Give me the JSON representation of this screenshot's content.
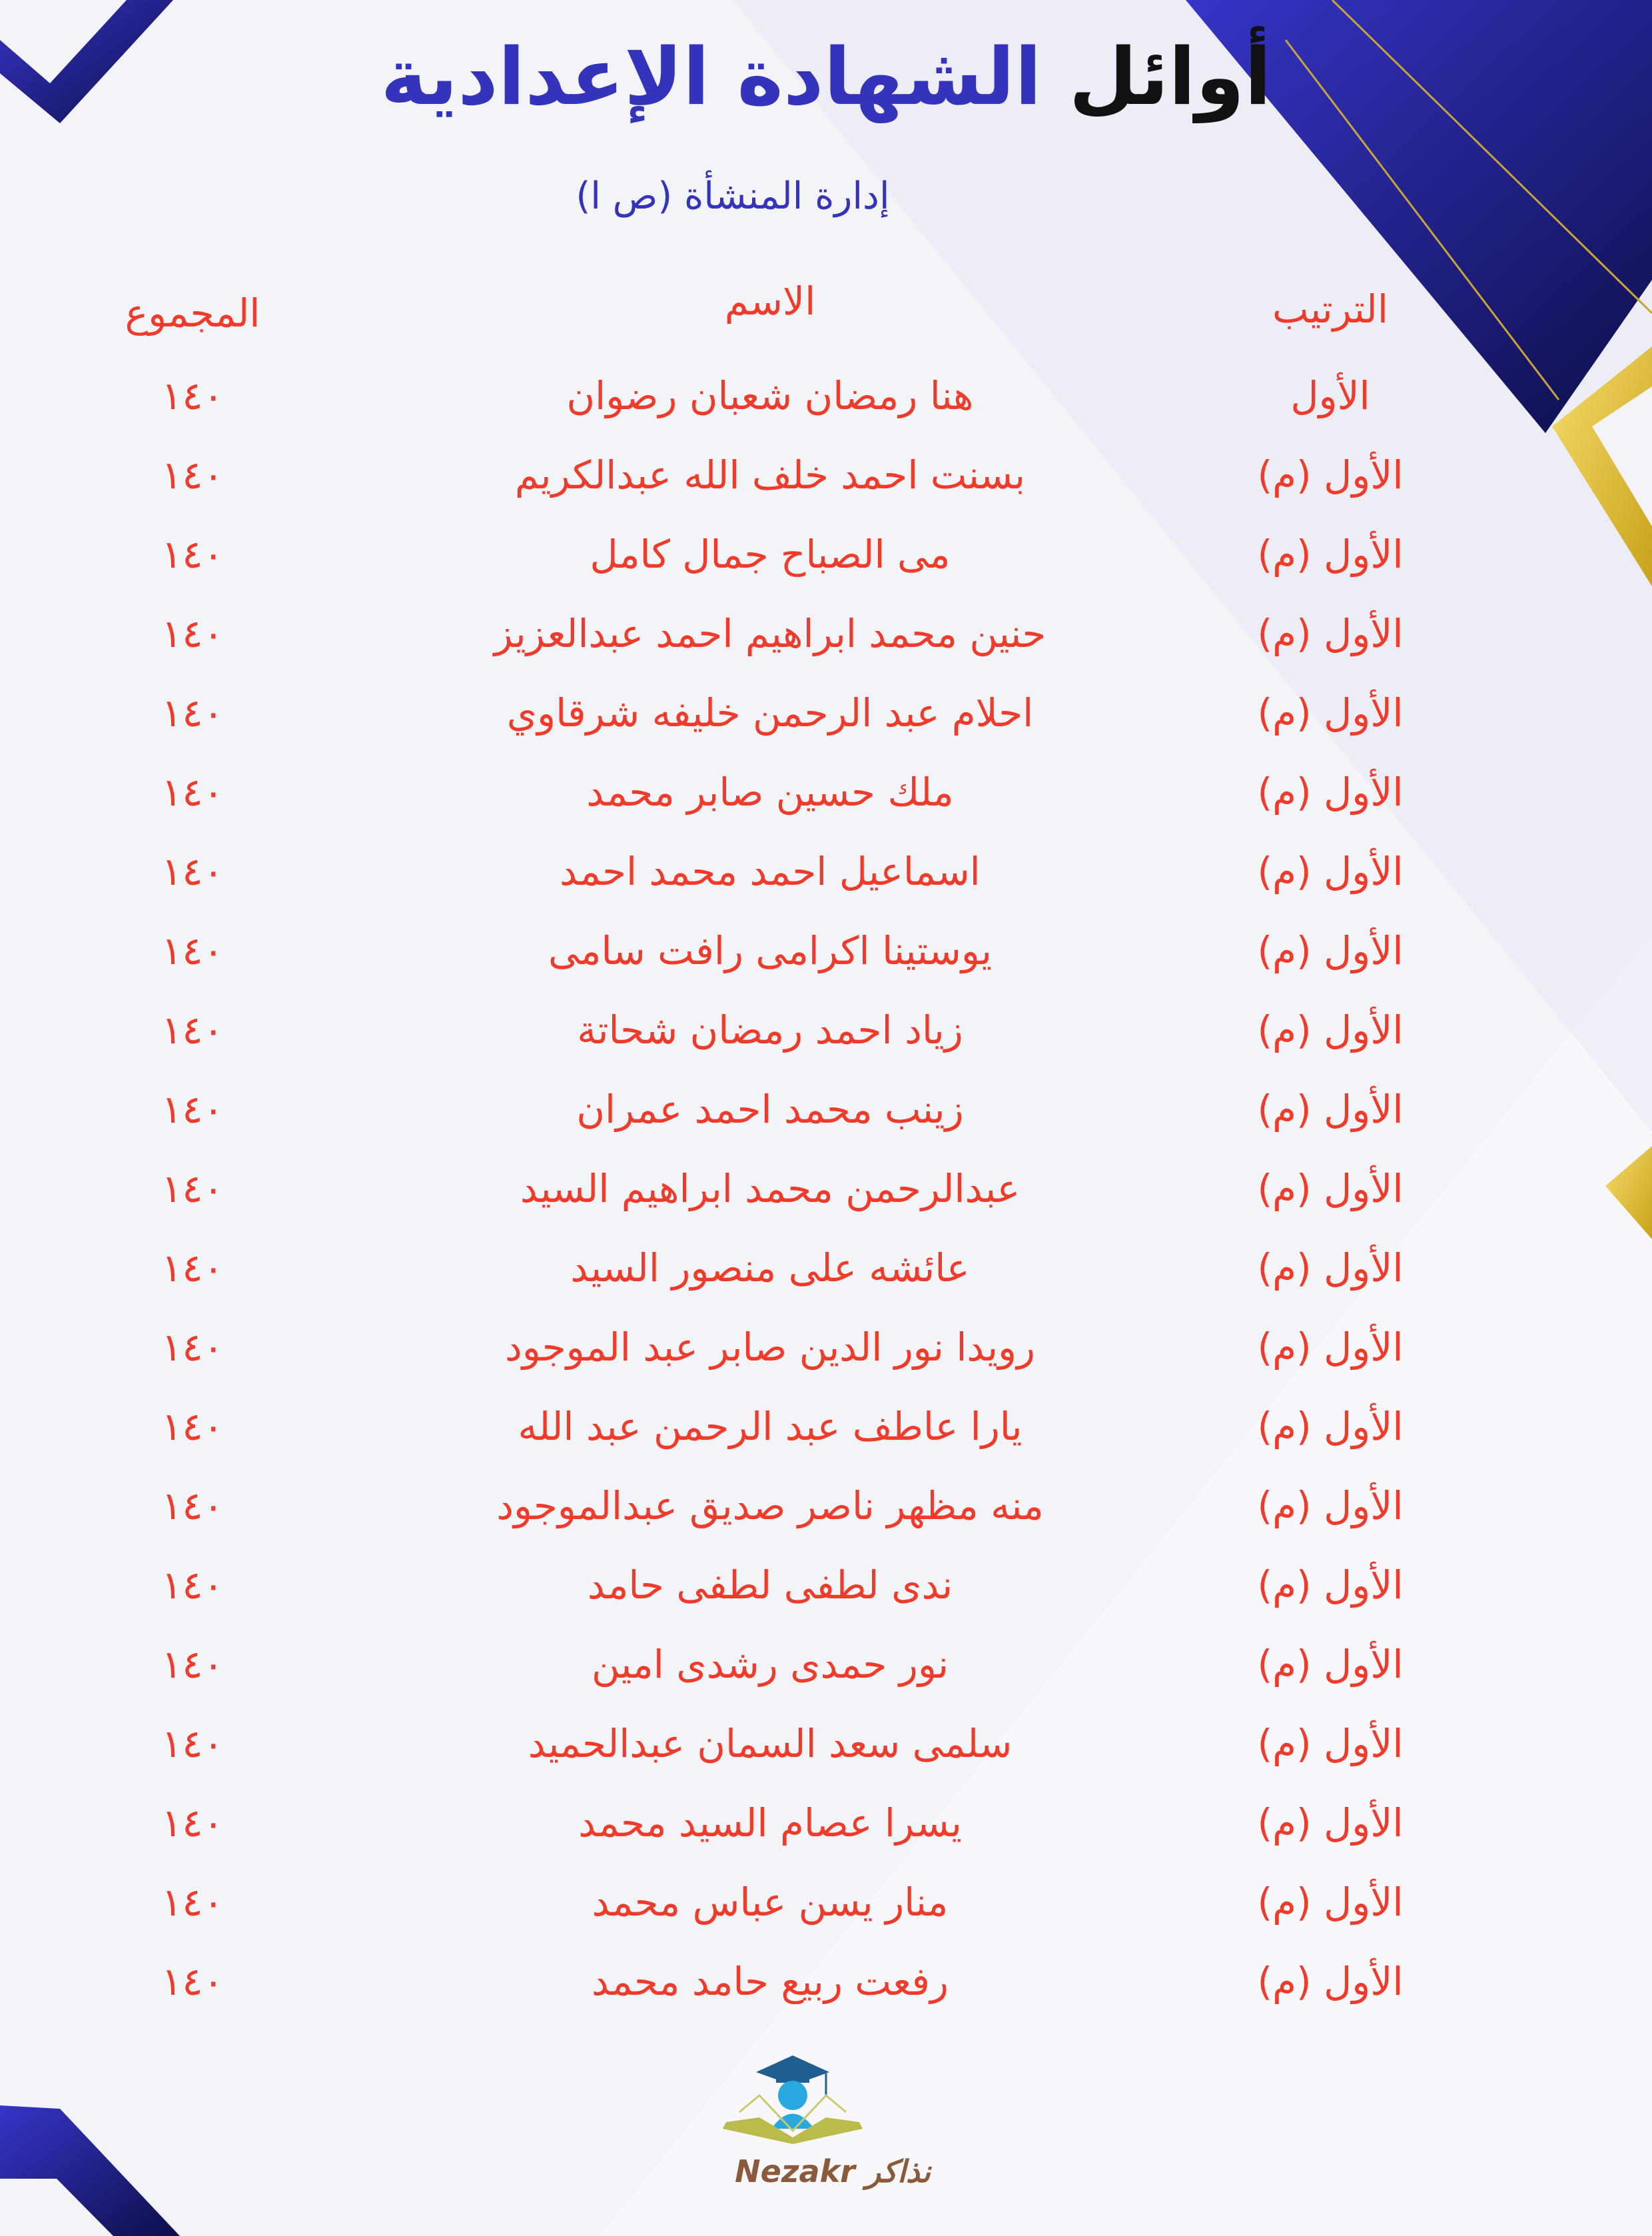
{
  "header": {
    "title_part1": "أوائل",
    "title_part2": "الشهادة الإعدادية",
    "subtitle": "إدارة المنشأة (ص ا)"
  },
  "table": {
    "columns": {
      "rank": "الترتيب",
      "name": "الاسم",
      "total": "المجموع"
    },
    "rows": [
      {
        "rank": "الأول",
        "name": "هنا رمضان شعبان رضوان",
        "total": "١٤٠"
      },
      {
        "rank": "الأول (م)",
        "name": "بسنت احمد خلف الله عبدالكريم",
        "total": "١٤٠"
      },
      {
        "rank": "الأول (م)",
        "name": "مى الصباح جمال كامل",
        "total": "١٤٠"
      },
      {
        "rank": "الأول (م)",
        "name": "حنين محمد ابراهيم احمد عبدالعزيز",
        "total": "١٤٠"
      },
      {
        "rank": "الأول (م)",
        "name": "احلام عبد الرحمن خليفه شرقاوي",
        "total": "١٤٠"
      },
      {
        "rank": "الأول (م)",
        "name": "ملك حسين صابر محمد",
        "total": "١٤٠"
      },
      {
        "rank": "الأول (م)",
        "name": "اسماعيل احمد محمد احمد",
        "total": "١٤٠"
      },
      {
        "rank": "الأول (م)",
        "name": "يوستينا اكرامى رافت سامى",
        "total": "١٤٠"
      },
      {
        "rank": "الأول (م)",
        "name": "زياد احمد رمضان شحاتة",
        "total": "١٤٠"
      },
      {
        "rank": "الأول (م)",
        "name": "زينب محمد احمد عمران",
        "total": "١٤٠"
      },
      {
        "rank": "الأول (م)",
        "name": "عبدالرحمن محمد ابراهيم السيد",
        "total": "١٤٠"
      },
      {
        "rank": "الأول (م)",
        "name": "عائشه على منصور السيد",
        "total": "١٤٠"
      },
      {
        "rank": "الأول (م)",
        "name": "رويدا نور الدين صابر عبد الموجود",
        "total": "١٤٠"
      },
      {
        "rank": "الأول (م)",
        "name": "يارا عاطف عبد الرحمن عبد الله",
        "total": "١٤٠"
      },
      {
        "rank": "الأول (م)",
        "name": "منه مظهر ناصر صديق عبدالموجود",
        "total": "١٤٠"
      },
      {
        "rank": "الأول (م)",
        "name": "ندى لطفى لطفى حامد",
        "total": "١٤٠"
      },
      {
        "rank": "الأول (م)",
        "name": "نور حمدى رشدى امين",
        "total": "١٤٠"
      },
      {
        "rank": "الأول (م)",
        "name": "سلمى سعد السمان عبدالحميد",
        "total": "١٤٠"
      },
      {
        "rank": "الأول (م)",
        "name": "يسرا عصام السيد محمد",
        "total": "١٤٠"
      },
      {
        "rank": "الأول (م)",
        "name": "منار يسن عباس محمد",
        "total": "١٤٠"
      },
      {
        "rank": "الأول (م)",
        "name": "رفعت ربيع حامد محمد",
        "total": "١٤٠"
      }
    ]
  },
  "logo": {
    "text_en": "Nezakr",
    "text_ar": "نذاكر"
  },
  "colors": {
    "accent_red": "#f03a2a",
    "title_blue": "#3333bb",
    "frame_blue": "#2e2eb8",
    "gold": "#e8c23a"
  }
}
